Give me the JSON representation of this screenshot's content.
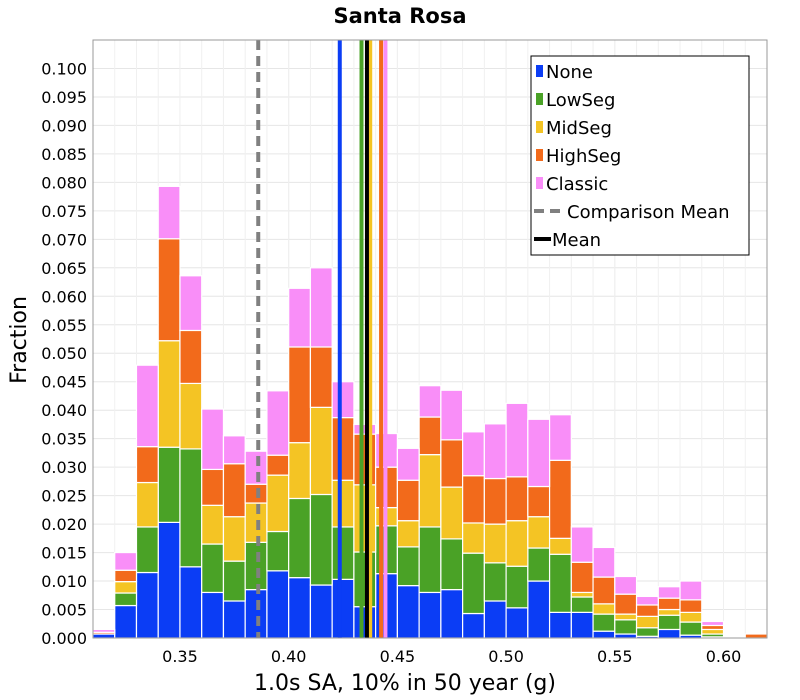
{
  "chart_data": {
    "type": "bar",
    "stacked": true,
    "title": "Santa Rosa",
    "xlabel": "1.0s SA, 10% in 50 year (g)",
    "ylabel": "Fraction",
    "xlim": [
      0.31,
      0.62
    ],
    "ylim": [
      0,
      0.105
    ],
    "bin_width": 0.01,
    "x_ticks": [
      "0.35",
      "0.40",
      "0.45",
      "0.50",
      "0.55",
      "0.60"
    ],
    "y_ticks": [
      "0.000",
      "0.005",
      "0.010",
      "0.015",
      "0.020",
      "0.025",
      "0.030",
      "0.035",
      "0.040",
      "0.045",
      "0.050",
      "0.055",
      "0.060",
      "0.065",
      "0.070",
      "0.075",
      "0.080",
      "0.085",
      "0.090",
      "0.095",
      "0.100"
    ],
    "grid": true,
    "legend_position": "top-right",
    "bin_starts": [
      0.31,
      0.32,
      0.33,
      0.34,
      0.35,
      0.36,
      0.37,
      0.38,
      0.39,
      0.4,
      0.41,
      0.42,
      0.43,
      0.44,
      0.45,
      0.46,
      0.47,
      0.48,
      0.49,
      0.5,
      0.51,
      0.52,
      0.53,
      0.54,
      0.55,
      0.56,
      0.57,
      0.58,
      0.59,
      0.6,
      0.61
    ],
    "series": [
      {
        "name": "None",
        "color": "#0b3df5",
        "values": [
          0.0007,
          0.0057,
          0.0115,
          0.0203,
          0.0125,
          0.008,
          0.0065,
          0.0085,
          0.0118,
          0.0106,
          0.0093,
          0.0103,
          0.0055,
          0.0113,
          0.0092,
          0.008,
          0.0085,
          0.0043,
          0.0065,
          0.0053,
          0.01,
          0.0045,
          0.0045,
          0.0012,
          0.0007,
          0.0003,
          0.0015,
          0.0005,
          0.0002,
          0,
          0
        ]
      },
      {
        "name": "LowSeg",
        "color": "#4aa226",
        "values": [
          0,
          0.0022,
          0.008,
          0.0132,
          0.0207,
          0.0085,
          0.007,
          0.0083,
          0.0069,
          0.0139,
          0.0159,
          0.0092,
          0.0096,
          0.0084,
          0.0068,
          0.0115,
          0.0089,
          0.0106,
          0.0067,
          0.0073,
          0.0058,
          0.0102,
          0.0027,
          0.003,
          0.0025,
          0.0015,
          0.0025,
          0.0023,
          0.0005,
          0,
          0
        ]
      },
      {
        "name": "MidSeg",
        "color": "#f4c424",
        "values": [
          0,
          0.002,
          0.0078,
          0.0187,
          0.0115,
          0.0068,
          0.0078,
          0.0069,
          0.0099,
          0.0098,
          0.0153,
          0.0082,
          0.0118,
          0.0032,
          0.0046,
          0.0127,
          0.0091,
          0.0053,
          0.0068,
          0.008,
          0.0055,
          0.0028,
          0.0008,
          0.0018,
          0.001,
          0.002,
          0.001,
          0.0017,
          0.0008,
          0,
          0
        ]
      },
      {
        "name": "HighSeg",
        "color": "#f26a1b",
        "values": [
          0.0003,
          0.002,
          0.0063,
          0.0179,
          0.0093,
          0.0063,
          0.0093,
          0.0033,
          0.0035,
          0.0168,
          0.0106,
          0.011,
          0.0089,
          0.0071,
          0.0071,
          0.0066,
          0.0083,
          0.0083,
          0.008,
          0.0077,
          0.0053,
          0.0137,
          0.0053,
          0.0047,
          0.0035,
          0.002,
          0.002,
          0.0022,
          0.0007,
          0,
          0.0007
        ]
      },
      {
        "name": "Classic",
        "color": "#f98ef8",
        "values": [
          0.0005,
          0.0031,
          0.0143,
          0.0092,
          0.0096,
          0.0106,
          0.0049,
          0.0058,
          0.0113,
          0.0103,
          0.0139,
          0.0063,
          0.0017,
          0.0059,
          0.0056,
          0.0055,
          0.0087,
          0.0077,
          0.0096,
          0.0129,
          0.0118,
          0.008,
          0.0062,
          0.0052,
          0.0031,
          0.0015,
          0.002,
          0.0033,
          0.0007,
          0,
          0
        ]
      }
    ],
    "reference_lines": [
      {
        "name": "Comparison Mean",
        "x": 0.386,
        "color": "#808080",
        "dashed": true
      },
      {
        "name": "Mean",
        "x": 0.436,
        "color": "#000000",
        "dashed": false
      }
    ],
    "series_means": [
      {
        "series": "None",
        "x": 0.4235,
        "color": "#0b3df5"
      },
      {
        "series": "LowSeg",
        "x": 0.4335,
        "color": "#4aa226"
      },
      {
        "series": "MidSeg",
        "x": 0.4375,
        "color": "#f4c424"
      },
      {
        "series": "HighSeg",
        "x": 0.4425,
        "color": "#f26a1b"
      },
      {
        "series": "Classic",
        "x": 0.4445,
        "color": "#f98ef8"
      }
    ],
    "legend": [
      "None",
      "LowSeg",
      "MidSeg",
      "HighSeg",
      "Classic",
      "Comparison Mean",
      "Mean"
    ]
  }
}
